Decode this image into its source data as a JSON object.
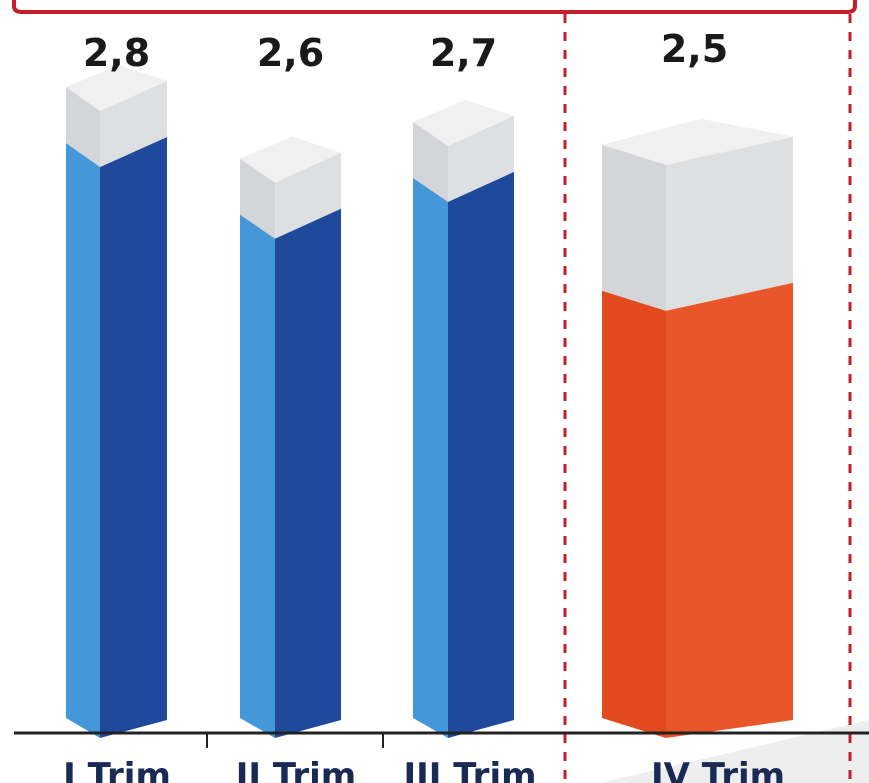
{
  "chart_data": {
    "type": "bar",
    "categories": [
      "I Trim",
      "II Trim",
      "III Trim",
      "IV Trim"
    ],
    "values": [
      2.8,
      2.6,
      2.7,
      2.5
    ],
    "value_labels": [
      "2,8",
      "2,6",
      "2,7",
      "2,5"
    ],
    "highlight_index": 3,
    "colors": {
      "bar_front": "#1f4a9c",
      "bar_side": "#4497d8",
      "bar_cap": "#dedfe1",
      "bar_cap_top": "#f0f0f1",
      "highlight_front": "#e9562a",
      "highlight_side": "#e44a20",
      "frame_red": "#c41e2a",
      "axis": "#222222"
    }
  }
}
